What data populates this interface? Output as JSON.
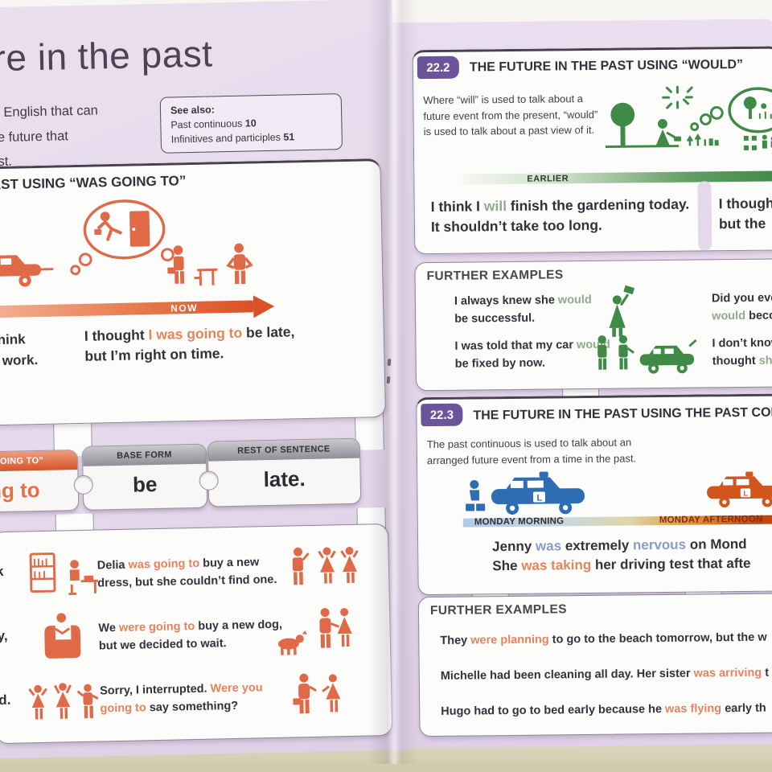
{
  "colors": {
    "page_lavender": "#e6d9ec",
    "panel_white": "#fcfcfb",
    "badge_purple": "#6b5499",
    "accent_orange": "#e06a48",
    "orange_text": "#e5845c",
    "accent_green": "#3e8a46",
    "green_text": "#92aa90",
    "accent_blue": "#2e6db4",
    "blue_text": "#8b9cc3",
    "table_tan": "#d6d1b5"
  },
  "left_page": {
    "title_fragment": "re in the past",
    "intro_lines": [
      "in English that can",
      "he future that",
      "ast."
    ],
    "see_also": {
      "heading": "See also:",
      "refs": [
        [
          {
            "t": "Past continuous ",
            "c": null
          },
          {
            "t": "10",
            "c": "bold"
          }
        ],
        [
          {
            "t": "Infinitives and participles ",
            "c": null
          },
          {
            "t": "51",
            "c": "bold"
          }
        ]
      ]
    },
    "section1": {
      "heading_fragment": "AST USING “WAS GOING TO”",
      "now_label": "NOW",
      "left_example_lines": [
        "think",
        "r work."
      ],
      "main_example": [
        {
          "t": "I thought ",
          "c": null
        },
        {
          "t": "I was going to",
          "c": "orange"
        },
        {
          "t": " be late, but I’m right on time.",
          "c": null
        }
      ],
      "puzzle": {
        "piece1": {
          "header": "OING TO”",
          "word": "ing to"
        },
        "piece2": {
          "header": "BASE FORM",
          "word": "be"
        },
        "piece3": {
          "header": "REST OF SENTENCE",
          "word": "late."
        }
      },
      "examples": [
        {
          "fragment": "k",
          "segments": [
            {
              "t": "Delia ",
              "c": null
            },
            {
              "t": "was going to",
              "c": "orange"
            },
            {
              "t": " buy a new dress, but she couldn’t find one.",
              "c": null
            }
          ]
        },
        {
          "fragment": "y,",
          "segments": [
            {
              "t": "We ",
              "c": null
            },
            {
              "t": "were going to",
              "c": "orange"
            },
            {
              "t": " buy a new dog, but we decided to wait.",
              "c": null
            }
          ]
        },
        {
          "fragment": "d.",
          "segments": [
            {
              "t": "Sorry, I interrupted. ",
              "c": null
            },
            {
              "t": "Were you going to",
              "c": "orange"
            },
            {
              "t": " say something?",
              "c": null
            }
          ]
        }
      ]
    }
  },
  "right_page": {
    "section2": {
      "badge": "22.2",
      "heading": "THE FUTURE IN THE PAST USING “WOULD”",
      "body": "Where “will” is used to talk about a future event from the present, “would” is used to talk about a past view of it.",
      "earlier_label": "EARLIER",
      "example": [
        {
          "t": "I think I ",
          "c": null
        },
        {
          "t": "will",
          "c": "green"
        },
        {
          "t": " finish the gardening today. It shouldn’t take too long.",
          "c": null
        }
      ],
      "example_cut_lines": [
        "I though",
        "but the"
      ]
    },
    "fe2": {
      "heading": "FURTHER EXAMPLES",
      "example1": [
        {
          "t": "I always knew she ",
          "c": null
        },
        {
          "t": "would",
          "c": "green"
        },
        {
          "t": " be successful.",
          "c": null
        }
      ],
      "example2": [
        {
          "t": "I was told that my car ",
          "c": null
        },
        {
          "t": "would",
          "c": "green"
        },
        {
          "t": " be fixed by now.",
          "c": null
        }
      ],
      "cut1": [
        [
          {
            "t": "Did you eve",
            "c": null
          }
        ],
        [
          {
            "t": "would",
            "c": "green"
          },
          {
            "t": " beco",
            "c": null
          }
        ]
      ],
      "cut2": [
        [
          {
            "t": "I don’t know",
            "c": null
          }
        ],
        [
          {
            "t": "thought ",
            "c": null
          },
          {
            "t": "she",
            "c": "green"
          }
        ]
      ]
    },
    "section3": {
      "badge": "22.3",
      "heading_fragment": "THE FUTURE IN THE PAST USING THE PAST CONT",
      "body": "The past continuous is used to talk about an arranged future event from a time in the past.",
      "morning_label": "MONDAY MORNING",
      "afternoon_label": "MONDAY AFTERNOON",
      "example": [
        [
          {
            "t": "Jenny ",
            "c": null
          },
          {
            "t": "was",
            "c": "blue"
          },
          {
            "t": " extremely ",
            "c": null
          },
          {
            "t": "nervous",
            "c": "blue"
          },
          {
            "t": " on Mond",
            "c": null
          }
        ],
        [
          {
            "t": "She ",
            "c": null
          },
          {
            "t": "was taking",
            "c": "orange"
          },
          {
            "t": " her driving test that afte",
            "c": null
          }
        ]
      ]
    },
    "fe3": {
      "heading": "FURTHER EXAMPLES",
      "examples": [
        [
          {
            "t": "They ",
            "c": null
          },
          {
            "t": "were planning",
            "c": "orange"
          },
          {
            "t": " to go to the beach tomorrow, but the w",
            "c": null
          }
        ],
        [
          {
            "t": "Michelle had been cleaning all day. Her sister ",
            "c": null
          },
          {
            "t": "was arriving",
            "c": "orange"
          },
          {
            "t": " t",
            "c": null
          }
        ],
        [
          {
            "t": "Hugo had to go to bed early because he ",
            "c": null
          },
          {
            "t": "was flying",
            "c": "orange"
          },
          {
            "t": " early th",
            "c": null
          }
        ]
      ]
    }
  },
  "icons": {
    "left": [
      "tow-truck-icon",
      "thought-bubble-door-runner-icon",
      "office-commuters-icon",
      "bookshelf-icon",
      "desk-reader-icon",
      "shopper-trio-icon",
      "armchair-reader-icon",
      "couple-with-dog-icon",
      "dancers-icon",
      "interrupted-couple-icon"
    ],
    "right": [
      "gardener-scene-icon",
      "garden-thought-bubble-icon",
      "plants-icon",
      "graduate-icon",
      "mechanics-car-icon",
      "waiting-driver-icon",
      "learner-car-blue-icon",
      "learner-car-orange-icon"
    ]
  }
}
